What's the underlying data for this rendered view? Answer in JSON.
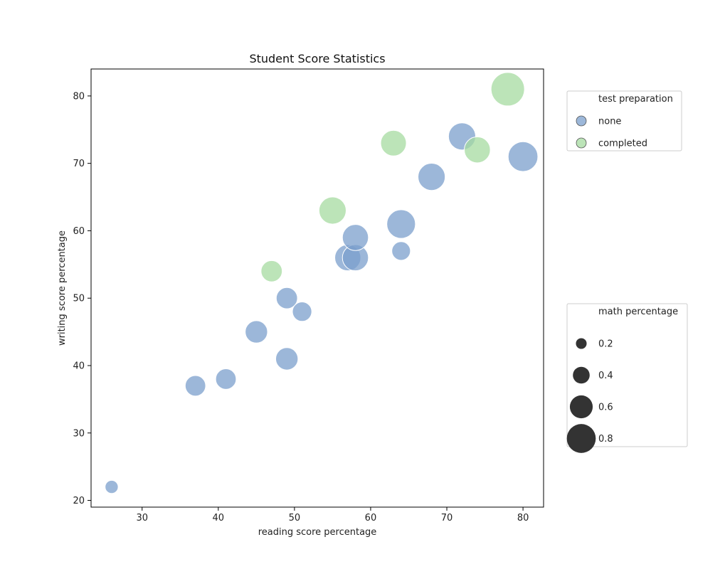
{
  "chart_data": {
    "type": "scatter",
    "title": "Student Score Statistics",
    "xlabel": "reading score percentage",
    "ylabel": "writing score percentage",
    "xlim": [
      23.3,
      82.7
    ],
    "ylim": [
      19,
      84
    ],
    "xticks": [
      30,
      40,
      50,
      60,
      70,
      80
    ],
    "yticks": [
      20,
      30,
      40,
      50,
      60,
      70,
      80
    ],
    "grid": false,
    "hue_legend": {
      "title": "test preparation",
      "placement": "right, upper",
      "entries": [
        {
          "label": "none",
          "color": "#7b9fcc"
        },
        {
          "label": "completed",
          "color": "#a6dba0"
        }
      ]
    },
    "size_legend": {
      "title": "math percentage",
      "placement": "right, lower",
      "entries": [
        {
          "label": "0.2",
          "value": 0.2
        },
        {
          "label": "0.4",
          "value": 0.4
        },
        {
          "label": "0.6",
          "value": 0.6
        },
        {
          "label": "0.8",
          "value": 0.8
        }
      ],
      "color": "#333333"
    },
    "series": [
      {
        "name": "none",
        "color": "#7b9fcc",
        "points": [
          {
            "x": 26,
            "y": 22,
            "size": 0.2
          },
          {
            "x": 37,
            "y": 37,
            "size": 0.4
          },
          {
            "x": 41,
            "y": 38,
            "size": 0.4
          },
          {
            "x": 45,
            "y": 45,
            "size": 0.45
          },
          {
            "x": 49,
            "y": 41,
            "size": 0.45
          },
          {
            "x": 49,
            "y": 50,
            "size": 0.42
          },
          {
            "x": 51,
            "y": 48,
            "size": 0.37
          },
          {
            "x": 57,
            "y": 56,
            "size": 0.55
          },
          {
            "x": 58,
            "y": 56,
            "size": 0.55
          },
          {
            "x": 58,
            "y": 59,
            "size": 0.55
          },
          {
            "x": 64,
            "y": 57,
            "size": 0.35
          },
          {
            "x": 64,
            "y": 61,
            "size": 0.62
          },
          {
            "x": 68,
            "y": 68,
            "size": 0.58
          },
          {
            "x": 72,
            "y": 74,
            "size": 0.58
          },
          {
            "x": 80,
            "y": 71,
            "size": 0.65
          }
        ]
      },
      {
        "name": "completed",
        "color": "#a6dba0",
        "points": [
          {
            "x": 47,
            "y": 54,
            "size": 0.42
          },
          {
            "x": 55,
            "y": 63,
            "size": 0.58
          },
          {
            "x": 63,
            "y": 73,
            "size": 0.54
          },
          {
            "x": 74,
            "y": 72,
            "size": 0.55
          },
          {
            "x": 78,
            "y": 81,
            "size": 0.75
          }
        ]
      }
    ]
  }
}
